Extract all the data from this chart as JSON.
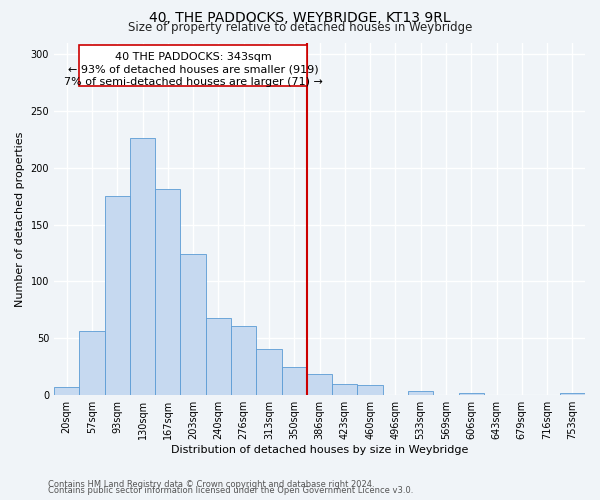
{
  "title": "40, THE PADDOCKS, WEYBRIDGE, KT13 9RL",
  "subtitle": "Size of property relative to detached houses in Weybridge",
  "xlabel": "Distribution of detached houses by size in Weybridge",
  "ylabel": "Number of detached properties",
  "bar_labels": [
    "20sqm",
    "57sqm",
    "93sqm",
    "130sqm",
    "167sqm",
    "203sqm",
    "240sqm",
    "276sqm",
    "313sqm",
    "350sqm",
    "386sqm",
    "423sqm",
    "460sqm",
    "496sqm",
    "533sqm",
    "569sqm",
    "606sqm",
    "643sqm",
    "679sqm",
    "716sqm",
    "753sqm"
  ],
  "bar_heights": [
    7,
    56,
    175,
    226,
    181,
    124,
    68,
    61,
    41,
    25,
    19,
    10,
    9,
    0,
    4,
    0,
    2,
    0,
    0,
    0,
    2
  ],
  "bar_color": "#c6d9f0",
  "bar_edge_color": "#5b9bd5",
  "vline_x": 9.5,
  "vline_color": "#cc0000",
  "ann_line1": "40 THE PADDOCKS: 343sqm",
  "ann_line2": "← 93% of detached houses are smaller (919)",
  "ann_line3": "7% of semi-detached houses are larger (71) →",
  "annotation_box_color": "#ffffff",
  "annotation_box_edge": "#cc0000",
  "ylim": [
    0,
    310
  ],
  "yticks": [
    0,
    50,
    100,
    150,
    200,
    250,
    300
  ],
  "footer_line1": "Contains HM Land Registry data © Crown copyright and database right 2024.",
  "footer_line2": "Contains public sector information licensed under the Open Government Licence v3.0.",
  "bg_color": "#f0f4f8",
  "grid_color": "#ffffff",
  "title_fontsize": 10,
  "subtitle_fontsize": 8.5,
  "axis_label_fontsize": 8,
  "tick_fontsize": 7,
  "annotation_fontsize": 8,
  "footer_fontsize": 6
}
